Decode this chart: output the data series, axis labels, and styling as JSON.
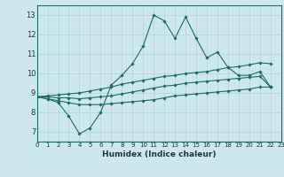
{
  "title": "",
  "xlabel": "Humidex (Indice chaleur)",
  "xlim": [
    0,
    23
  ],
  "ylim": [
    6.5,
    13.5
  ],
  "yticks": [
    7,
    8,
    9,
    10,
    11,
    12,
    13
  ],
  "xticks": [
    0,
    1,
    2,
    3,
    4,
    5,
    6,
    7,
    8,
    9,
    10,
    11,
    12,
    13,
    14,
    15,
    16,
    17,
    18,
    19,
    20,
    21,
    22,
    23
  ],
  "bg_color": "#cde8ec",
  "grid_color": "#afd4d8",
  "line_color": "#1a6b6b",
  "series": {
    "main": [
      8.8,
      8.7,
      8.5,
      7.8,
      6.9,
      7.2,
      8.0,
      9.4,
      9.9,
      10.5,
      11.4,
      13.0,
      12.7,
      11.8,
      12.9,
      11.8,
      10.8,
      11.1,
      10.3,
      9.9,
      9.9,
      10.1,
      9.3,
      null
    ],
    "upper": [
      8.8,
      8.85,
      8.9,
      8.95,
      9.0,
      9.1,
      9.2,
      9.3,
      9.45,
      9.55,
      9.65,
      9.75,
      9.85,
      9.9,
      10.0,
      10.05,
      10.1,
      10.2,
      10.3,
      10.35,
      10.45,
      10.55,
      10.5,
      null
    ],
    "mid": [
      8.8,
      8.8,
      8.75,
      8.75,
      8.7,
      8.75,
      8.8,
      8.85,
      8.95,
      9.05,
      9.15,
      9.25,
      9.35,
      9.4,
      9.5,
      9.55,
      9.6,
      9.65,
      9.7,
      9.75,
      9.8,
      9.85,
      9.3,
      null
    ],
    "lower": [
      8.8,
      8.7,
      8.6,
      8.5,
      8.4,
      8.4,
      8.4,
      8.45,
      8.5,
      8.55,
      8.6,
      8.65,
      8.75,
      8.85,
      8.9,
      8.95,
      9.0,
      9.05,
      9.1,
      9.15,
      9.2,
      9.3,
      9.3,
      null
    ]
  }
}
